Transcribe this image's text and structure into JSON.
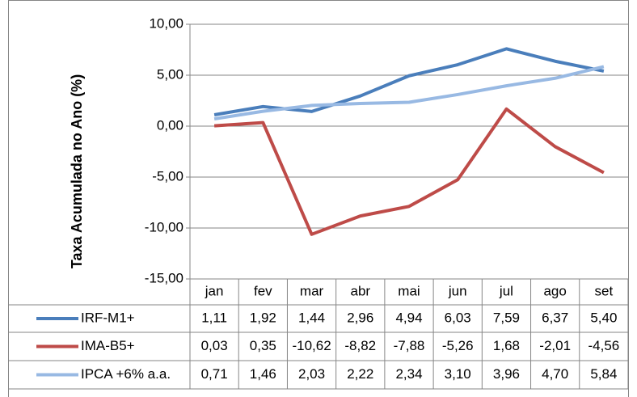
{
  "chart_data": {
    "type": "line",
    "y_label": "Taxa Acumulada no Ano (%)",
    "categories": [
      "jan",
      "fev",
      "mar",
      "abr",
      "mai",
      "jun",
      "jul",
      "ago",
      "set"
    ],
    "series": [
      {
        "name": "IRF-M1+",
        "color": "#4a7ebb",
        "values": [
          1.11,
          1.92,
          1.44,
          2.96,
          4.94,
          6.03,
          7.59,
          6.37,
          5.4
        ],
        "value_labels": [
          "1,11",
          "1,92",
          "1,44",
          "2,96",
          "4,94",
          "6,03",
          "7,59",
          "6,37",
          "5,40"
        ]
      },
      {
        "name": "IMA-B5+",
        "color": "#be4b48",
        "values": [
          0.03,
          0.35,
          -10.62,
          -8.82,
          -7.88,
          -5.26,
          1.68,
          -2.01,
          -4.56
        ],
        "value_labels": [
          "0,03",
          "0,35",
          "-10,62",
          "-8,82",
          "-7,88",
          "-5,26",
          "1,68",
          "-2,01",
          "-4,56"
        ]
      },
      {
        "name": "IPCA +6% a.a.",
        "color": "#98b9e3",
        "values": [
          0.71,
          1.46,
          2.03,
          2.22,
          2.34,
          3.1,
          3.96,
          4.7,
          5.84
        ],
        "value_labels": [
          "0,71",
          "1,46",
          "2,03",
          "2,22",
          "2,34",
          "3,10",
          "3,96",
          "4,70",
          "5,84"
        ]
      }
    ],
    "ylim": [
      -15,
      10
    ],
    "yticks": [
      {
        "value": -15,
        "label": "-15,00"
      },
      {
        "value": -10,
        "label": "-10,00"
      },
      {
        "value": -5,
        "label": "-5,00"
      },
      {
        "value": 0,
        "label": "0,00"
      },
      {
        "value": 5,
        "label": "5,00"
      },
      {
        "value": 10,
        "label": "10,00"
      }
    ],
    "grid": true
  }
}
